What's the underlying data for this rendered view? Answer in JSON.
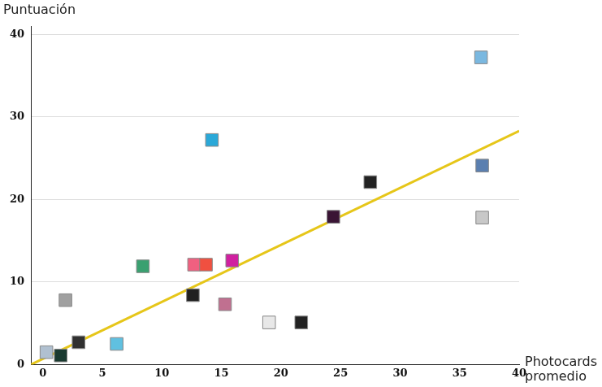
{
  "chart_data": {
    "type": "scatter",
    "y_label": "Puntuación",
    "x_label": "Photocards\npromedio",
    "xlim": [
      -1,
      40
    ],
    "xticks": [
      0,
      5,
      10,
      15,
      20,
      25,
      30,
      35,
      40
    ],
    "ylim": [
      0,
      41
    ],
    "yticks": [
      0,
      10,
      20,
      30,
      40
    ],
    "grid": "y",
    "series": [
      {
        "type": "scatter",
        "marker": "square",
        "x": [
          36.8,
          14.2,
          36.9,
          27.5,
          24.4,
          36.9,
          8.4,
          12.7,
          13.7,
          15.9,
          12.6,
          15.3,
          1.9,
          19.0,
          21.7,
          6.2,
          3.0,
          0.3,
          1.5
        ],
        "values": [
          37.2,
          27.2,
          24.1,
          22.1,
          17.9,
          17.8,
          11.9,
          12.1,
          12.1,
          12.6,
          8.4,
          7.3,
          7.8,
          5.1,
          5.1,
          2.5,
          2.7,
          1.5,
          1.1
        ],
        "colors": [
          "#7ab8e0",
          "#2aa8d8",
          "#5a7fb0",
          "#222222",
          "#3a1535",
          "#c8c8c8",
          "#3aa070",
          "#f06080",
          "#f05040",
          "#d020a0",
          "#202020",
          "#c07090",
          "#a0a0a0",
          "#e8e8e8",
          "#222222",
          "#60c0e0",
          "#303030",
          "#b0c0d0",
          "#1a3a30"
        ]
      },
      {
        "type": "line",
        "color": "#e6c619",
        "line_style": "solid",
        "x": [
          -1,
          40
        ],
        "values": [
          0,
          28.3
        ]
      }
    ]
  }
}
